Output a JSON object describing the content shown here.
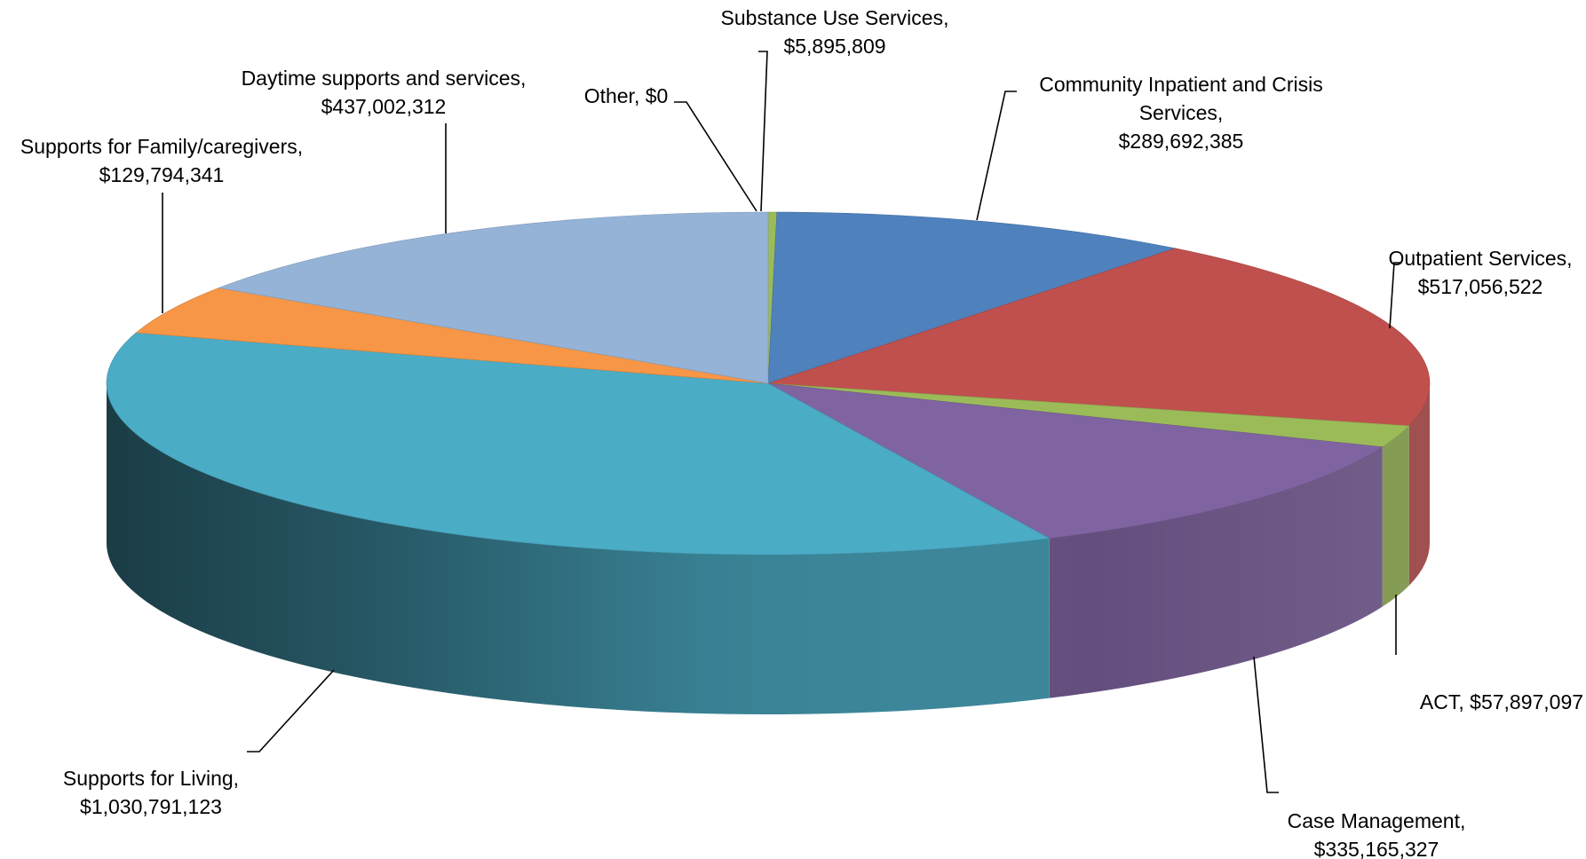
{
  "chart_data": {
    "type": "pie",
    "title": "",
    "style": "3d",
    "slices": [
      {
        "name": "Substance Use Services",
        "value": 5895809,
        "label_lines": [
          "Substance Use Services,",
          "$5,895,809"
        ],
        "color": "#9bbb59"
      },
      {
        "name": "Community Inpatient and Crisis Services",
        "value": 289692385,
        "label_lines": [
          "Community Inpatient and Crisis",
          "Services,",
          "$289,692,385"
        ],
        "color": "#4f81bd"
      },
      {
        "name": "Outpatient Services",
        "value": 517056522,
        "label_lines": [
          "Outpatient Services,",
          "$517,056,522"
        ],
        "color": "#c0504d"
      },
      {
        "name": "ACT",
        "value": 57897097,
        "label_lines": [
          "ACT, $57,897,097"
        ],
        "color": "#9bbb59"
      },
      {
        "name": "Case Management",
        "value": 335165327,
        "label_lines": [
          "Case Management,",
          "$335,165,327"
        ],
        "color": "#8064a2"
      },
      {
        "name": "Supports for Living",
        "value": 1030791123,
        "label_lines": [
          "Supports for Living,",
          "$1,030,791,123"
        ],
        "color": "#4bacc6"
      },
      {
        "name": "Supports for Family/caregivers",
        "value": 129794341,
        "label_lines": [
          "Supports for Family/caregivers,",
          "$129,794,341"
        ],
        "color": "#f79646"
      },
      {
        "name": "Daytime supports and services",
        "value": 437002312,
        "label_lines": [
          "Daytime supports and services,",
          "$437,002,312"
        ],
        "color": "#95b3d7"
      },
      {
        "name": "Other",
        "value": 0,
        "label_lines": [
          "Other, $0"
        ],
        "color": "#9bbb59"
      }
    ]
  }
}
